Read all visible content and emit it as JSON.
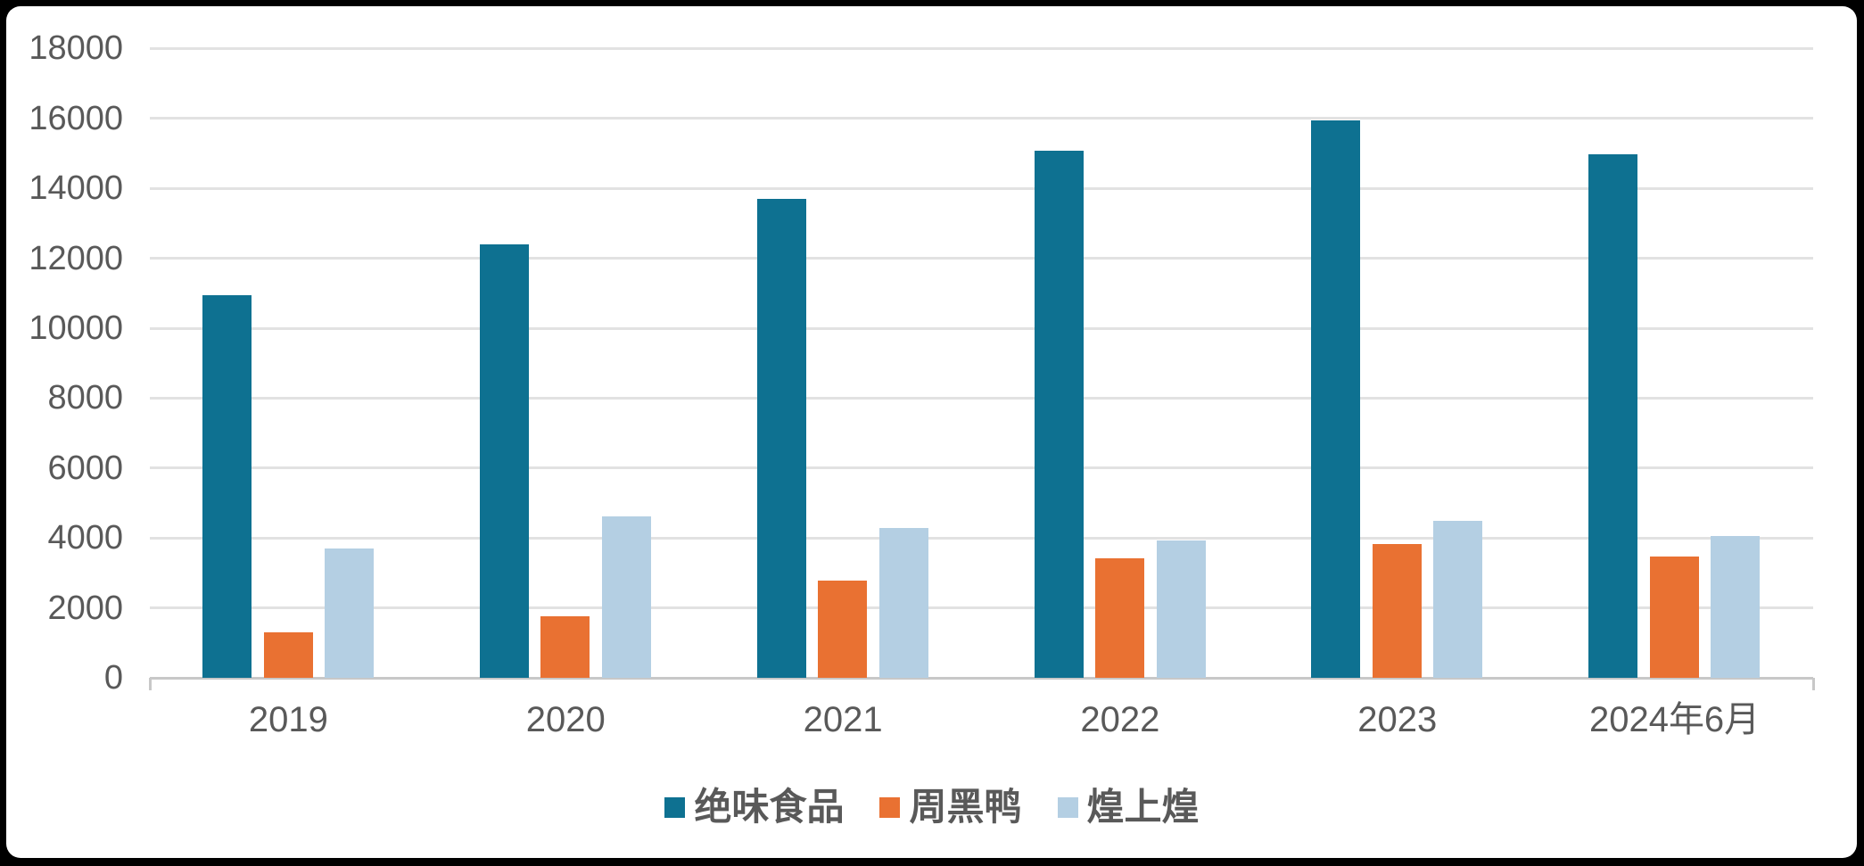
{
  "chart_data": {
    "type": "bar",
    "title": "",
    "xlabel": "",
    "ylabel": "",
    "categories": [
      "2019",
      "2020",
      "2021",
      "2022",
      "2023",
      "2024年6月"
    ],
    "series": [
      {
        "name": "绝味食品",
        "color": "#0E7191",
        "values": [
          10950,
          12400,
          13710,
          15080,
          15950,
          14970
        ]
      },
      {
        "name": "周黑鸭",
        "color": "#E97132",
        "values": [
          1300,
          1760,
          2780,
          3430,
          3820,
          3460
        ]
      },
      {
        "name": "煌上煌",
        "color": "#B4CFE3",
        "values": [
          3710,
          4630,
          4280,
          3930,
          4500,
          4050
        ]
      }
    ],
    "axis": {
      "ymin": 0,
      "ymax": 18000,
      "ystep": 2000
    },
    "grid": true,
    "legend_position": "bottom"
  },
  "colors": {
    "gridline": "#E2E2E2",
    "axis_line": "#C8C8C8",
    "text": "#595959",
    "card_background": "#FFFFFF",
    "frame": "#000000"
  }
}
